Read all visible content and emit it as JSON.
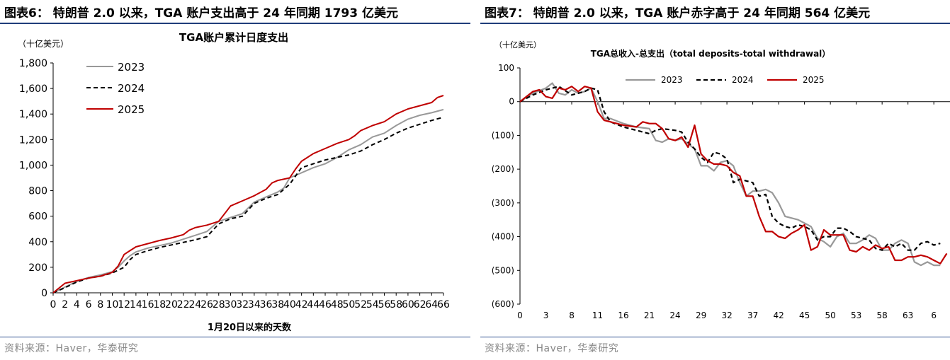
{
  "figures": [
    {
      "fig_title": "图表6：  特朗普 2.0 以来，TGA 账户支出高于 24 年同期 1793 亿美元",
      "source": "资料来源：Haver，华泰研究"
    },
    {
      "fig_title": "图表7：  特朗普 2.0 以来，TGA 账户赤字高于 24 年同期 564 亿美元",
      "source": "资料来源：Haver，华泰研究"
    }
  ],
  "colors": {
    "s2023": "#999999",
    "s2024": "#000000",
    "s2025": "#c00000",
    "rule": "#1f3d7a"
  },
  "chart_data": [
    {
      "type": "line",
      "title": "TGA账户累计日度支出",
      "unit": "（十亿美元）",
      "xlabel": "1月20日以来的天数",
      "ylim": [
        0,
        1800
      ],
      "yticks": [
        "0",
        "200",
        "400",
        "600",
        "800",
        "1,000",
        "1,200",
        "1,400",
        "1,600",
        "1,800"
      ],
      "ytick_values": [
        0,
        200,
        400,
        600,
        800,
        1000,
        1200,
        1400,
        1600,
        1800
      ],
      "xlim": [
        0,
        66
      ],
      "xticks": [
        0,
        2,
        4,
        6,
        8,
        10,
        12,
        14,
        16,
        18,
        20,
        22,
        24,
        26,
        28,
        30,
        32,
        34,
        36,
        38,
        40,
        42,
        44,
        46,
        48,
        50,
        52,
        54,
        56,
        58,
        60,
        62,
        64,
        66
      ],
      "legend_position": "top-left",
      "series": [
        {
          "name": "2023",
          "style": "solid-gray",
          "x": [
            0,
            2,
            4,
            6,
            8,
            10,
            11,
            12,
            13,
            14,
            16,
            18,
            20,
            22,
            24,
            26,
            28,
            30,
            32,
            34,
            36,
            38,
            39,
            40,
            42,
            44,
            46,
            48,
            50,
            52,
            54,
            56,
            58,
            60,
            62,
            64,
            66
          ],
          "y": [
            0,
            45,
            90,
            120,
            140,
            165,
            200,
            250,
            290,
            320,
            350,
            370,
            390,
            420,
            450,
            480,
            560,
            590,
            620,
            710,
            750,
            790,
            820,
            900,
            940,
            980,
            1010,
            1060,
            1120,
            1160,
            1220,
            1250,
            1310,
            1360,
            1390,
            1410,
            1435
          ]
        },
        {
          "name": "2024",
          "style": "dashed-black",
          "x": [
            0,
            2,
            4,
            6,
            8,
            10,
            12,
            13,
            14,
            16,
            18,
            20,
            22,
            24,
            26,
            28,
            30,
            32,
            34,
            36,
            38,
            40,
            42,
            44,
            46,
            48,
            50,
            52,
            54,
            56,
            58,
            60,
            62,
            64,
            66
          ],
          "y": [
            0,
            40,
            85,
            115,
            130,
            155,
            200,
            260,
            300,
            330,
            355,
            375,
            395,
            415,
            440,
            540,
            580,
            600,
            700,
            740,
            770,
            850,
            980,
            1010,
            1040,
            1060,
            1080,
            1110,
            1160,
            1200,
            1250,
            1290,
            1320,
            1350,
            1375
          ]
        },
        {
          "name": "2025",
          "style": "solid-red",
          "x": [
            0,
            2,
            4,
            6,
            8,
            10,
            11,
            12,
            13,
            14,
            16,
            18,
            20,
            22,
            23,
            24,
            26,
            28,
            30,
            32,
            34,
            36,
            37,
            38,
            40,
            41,
            42,
            44,
            46,
            48,
            50,
            51,
            52,
            54,
            56,
            58,
            60,
            62,
            64,
            65,
            66
          ],
          "y": [
            0,
            75,
            95,
            115,
            130,
            160,
            210,
            300,
            330,
            360,
            385,
            410,
            430,
            455,
            490,
            510,
            530,
            560,
            680,
            720,
            760,
            810,
            860,
            880,
            900,
            970,
            1030,
            1090,
            1130,
            1170,
            1200,
            1230,
            1270,
            1310,
            1340,
            1400,
            1440,
            1465,
            1490,
            1530,
            1545
          ]
        }
      ]
    },
    {
      "type": "line",
      "title": "TGA总收入-总支出（total deposits-total withdrawal）",
      "unit": "（十亿美元）",
      "ylim": [
        -600,
        100
      ],
      "yticks": [
        "100",
        "0",
        "(100)",
        "(200)",
        "(300)",
        "(400)",
        "(500)",
        "(600)"
      ],
      "ytick_values": [
        100,
        0,
        -100,
        -200,
        -300,
        -400,
        -500,
        -600
      ],
      "xlim": [
        0,
        66
      ],
      "xticks": [
        "0",
        "3",
        "8",
        "11",
        "16",
        "21",
        "24",
        "29",
        "32",
        "37",
        "42",
        "45",
        "50",
        "53",
        "58",
        "63",
        "6"
      ],
      "xtick_values": [
        0,
        4,
        8,
        12,
        16,
        20,
        24,
        28,
        32,
        36,
        40,
        44,
        48,
        52,
        56,
        60,
        64
      ],
      "legend_position": "top",
      "series": [
        {
          "name": "2023",
          "style": "solid-gray",
          "x": [
            0,
            2,
            4,
            5,
            6,
            7,
            8,
            9,
            10,
            11,
            12,
            13,
            14,
            16,
            18,
            20,
            21,
            22,
            23,
            24,
            25,
            26,
            27,
            28,
            29,
            30,
            31,
            32,
            33,
            34,
            35,
            36,
            37,
            38,
            39,
            40,
            41,
            42,
            43,
            44,
            45,
            46,
            47,
            48,
            49,
            50,
            51,
            52,
            53,
            54,
            55,
            56,
            57,
            58,
            59,
            60,
            61,
            62,
            63,
            64,
            65
          ],
          "y": [
            0,
            25,
            40,
            55,
            25,
            20,
            35,
            25,
            30,
            40,
            0,
            -50,
            -50,
            -65,
            -75,
            -80,
            -115,
            -120,
            -110,
            -115,
            -110,
            -125,
            -140,
            -190,
            -190,
            -205,
            -180,
            -175,
            -190,
            -240,
            -280,
            -265,
            -265,
            -260,
            -270,
            -300,
            -340,
            -345,
            -350,
            -360,
            -370,
            -405,
            -415,
            -430,
            -400,
            -390,
            -420,
            -420,
            -410,
            -395,
            -405,
            -440,
            -440,
            -420,
            -410,
            -420,
            -475,
            -485,
            -475,
            -485,
            -485
          ]
        },
        {
          "name": "2024",
          "style": "dashed-black",
          "x": [
            0,
            2,
            4,
            6,
            8,
            10,
            11,
            12,
            13,
            14,
            16,
            18,
            20,
            21,
            22,
            24,
            25,
            26,
            27,
            28,
            29,
            30,
            31,
            32,
            33,
            34,
            35,
            36,
            37,
            38,
            39,
            40,
            41,
            42,
            43,
            44,
            45,
            46,
            47,
            48,
            49,
            50,
            51,
            52,
            53,
            54,
            55,
            56,
            57,
            58,
            59,
            60,
            61,
            62,
            63,
            64,
            65
          ],
          "y": [
            0,
            20,
            35,
            45,
            20,
            30,
            40,
            35,
            -30,
            -60,
            -75,
            -85,
            -95,
            -85,
            -80,
            -85,
            -90,
            -120,
            -140,
            -165,
            -180,
            -150,
            -155,
            -170,
            -240,
            -230,
            -235,
            -240,
            -280,
            -275,
            -340,
            -360,
            -370,
            -375,
            -365,
            -370,
            -380,
            -410,
            -400,
            -400,
            -375,
            -375,
            -385,
            -400,
            -405,
            -410,
            -435,
            -440,
            -420,
            -430,
            -420,
            -440,
            -440,
            -420,
            -415,
            -425,
            -420
          ]
        },
        {
          "name": "2025",
          "style": "solid-red",
          "x": [
            0,
            2,
            3,
            4,
            5,
            6,
            7,
            8,
            9,
            10,
            11,
            12,
            13,
            14,
            16,
            18,
            19,
            20,
            21,
            22,
            23,
            24,
            25,
            26,
            27,
            28,
            29,
            30,
            31,
            32,
            33,
            34,
            35,
            36,
            37,
            38,
            39,
            40,
            41,
            42,
            43,
            44,
            45,
            46,
            47,
            48,
            49,
            50,
            51,
            52,
            53,
            54,
            55,
            56,
            57,
            58,
            59,
            60,
            61,
            62,
            63,
            64,
            65,
            66
          ],
          "y": [
            0,
            30,
            35,
            15,
            10,
            40,
            35,
            45,
            30,
            45,
            40,
            -30,
            -55,
            -60,
            -70,
            -75,
            -60,
            -65,
            -65,
            -80,
            -110,
            -115,
            -105,
            -135,
            -70,
            -155,
            -175,
            -185,
            -185,
            -190,
            -210,
            -220,
            -280,
            -280,
            -340,
            -385,
            -385,
            -400,
            -405,
            -390,
            -380,
            -365,
            -440,
            -430,
            -380,
            -395,
            -395,
            -395,
            -440,
            -445,
            -430,
            -440,
            -425,
            -435,
            -430,
            -470,
            -470,
            -460,
            -460,
            -455,
            -460,
            -470,
            -480,
            -450
          ]
        }
      ]
    }
  ]
}
